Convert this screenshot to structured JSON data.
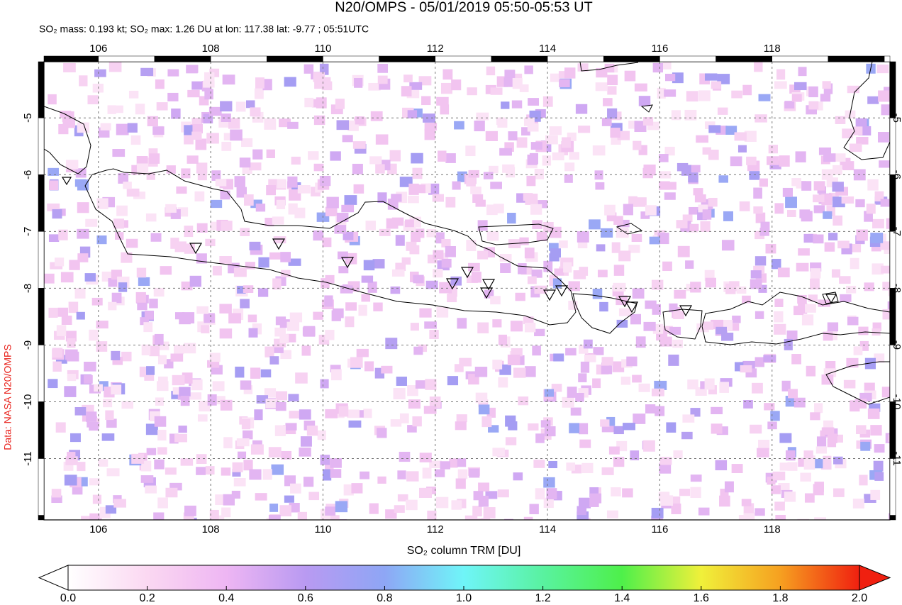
{
  "map": {
    "title": "N20/OMPS - 05/01/2019 05:50-05:53 UT",
    "subtitle": "SO₂ mass: 0.193 kt; SO₂ max: 1.26 DU at lon: 117.38 lat: -9.77 ; 05:51UTC",
    "credit": "Data: NASA N20/OMPS",
    "lonlim": [
      105.03,
      120.1
    ],
    "latlim": [
      -4.01,
      -12.08
    ],
    "lon_ticks": [
      106,
      108,
      110,
      112,
      114,
      116,
      118
    ],
    "lat_ticks": [
      -5,
      -6,
      -7,
      -8,
      -9,
      -10,
      -11
    ],
    "colorbar": {
      "label": "SO₂ column TRM [DU]",
      "lim": [
        0,
        2
      ],
      "ticks": [
        {
          "value": 0,
          "label": "0.0"
        },
        {
          "value": 0.2,
          "label": "0.2"
        },
        {
          "value": 0.4,
          "label": "0.4"
        },
        {
          "value": 0.6,
          "label": "0.6"
        },
        {
          "value": 0.8,
          "label": "0.8"
        },
        {
          "value": 1,
          "label": "1.0"
        },
        {
          "value": 1.2,
          "label": "1.2"
        },
        {
          "value": 1.4,
          "label": "1.4"
        },
        {
          "value": 1.6,
          "label": "1.6"
        },
        {
          "value": 1.8,
          "label": "1.8"
        },
        {
          "value": 2,
          "label": "2.0"
        }
      ]
    }
  }
}
